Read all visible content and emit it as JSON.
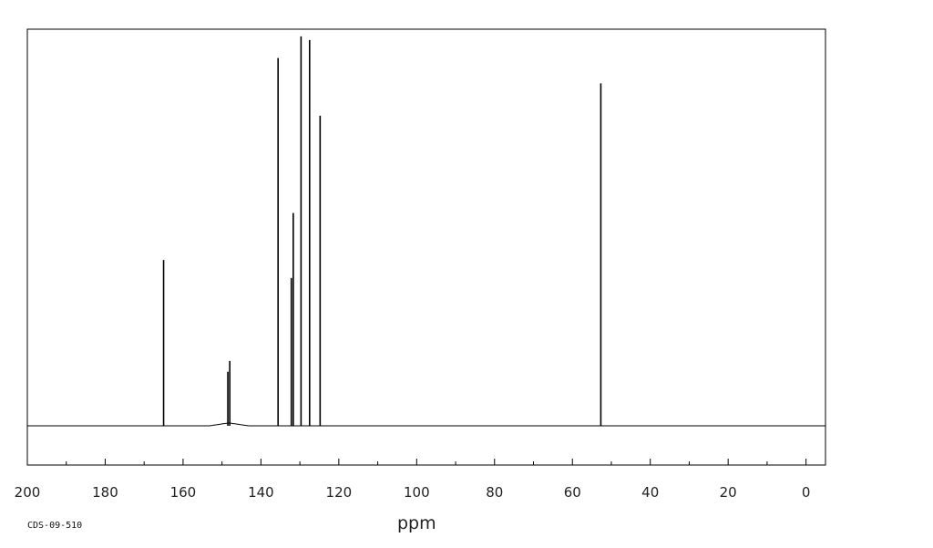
{
  "chart_data": {
    "type": "line",
    "xlabel": "ppm",
    "ylabel": "",
    "title": "",
    "xlim": [
      200,
      -5
    ],
    "x_reversed": true,
    "ylim": [
      -0.12,
      1.1
    ],
    "x_ticks": [
      200,
      180,
      160,
      140,
      120,
      100,
      80,
      60,
      40,
      20,
      0
    ],
    "x_tick_labels": [
      "200",
      "180",
      "160",
      "140",
      "120",
      "100",
      "80",
      "60",
      "40",
      "20",
      "0"
    ],
    "grid": false,
    "legend": "none",
    "peaks": [
      {
        "x": 165.0,
        "y": 0.46
      },
      {
        "x": 148.5,
        "y": 0.15
      },
      {
        "x": 148.0,
        "y": 0.18
      },
      {
        "x": 135.6,
        "y": 1.02
      },
      {
        "x": 132.2,
        "y": 0.41
      },
      {
        "x": 131.7,
        "y": 0.59
      },
      {
        "x": 129.7,
        "y": 1.08
      },
      {
        "x": 127.5,
        "y": 1.07
      },
      {
        "x": 124.8,
        "y": 0.86
      },
      {
        "x": 52.7,
        "y": 0.95
      }
    ],
    "line_color": "#000000"
  },
  "footer": {
    "code": "CDS-09-510"
  }
}
